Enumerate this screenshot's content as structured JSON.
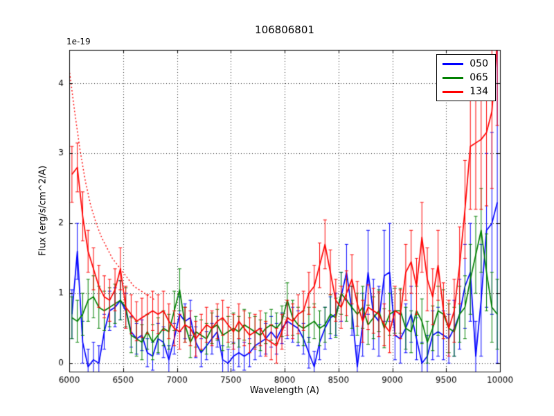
{
  "chart_data": {
    "type": "line",
    "title": "106806801",
    "xlabel": "Wavelength (A)",
    "ylabel": "Flux (erg/s/cm^2/A)",
    "y_offset_scale": "1e-19",
    "xlim": [
      6000,
      10000
    ],
    "ylim": [
      -0.12,
      4.48
    ],
    "x_ticks": [
      6000,
      6500,
      7000,
      7500,
      8000,
      8500,
      9000,
      9500,
      10000
    ],
    "y_ticks": [
      0,
      1,
      2,
      3,
      4
    ],
    "grid": true,
    "grid_style": "dotted",
    "legend_position": "upper right",
    "legend": {
      "entries": [
        {
          "label": "050",
          "color": "#0000ff"
        },
        {
          "label": "065",
          "color": "#008000"
        },
        {
          "label": "134",
          "color": "#ff0000"
        }
      ]
    },
    "x": {
      "start": 6025,
      "step": 50,
      "count": 80
    },
    "series": [
      {
        "name": "050",
        "color": "#0000ff",
        "style": "solid",
        "values": [
          0.7,
          1.6,
          0.3,
          -0.05,
          0.05,
          0.0,
          0.45,
          0.75,
          0.8,
          0.9,
          0.75,
          0.45,
          0.35,
          0.4,
          0.15,
          0.1,
          0.35,
          0.3,
          0.05,
          0.35,
          0.7,
          0.6,
          0.65,
          0.3,
          0.15,
          0.25,
          0.35,
          0.45,
          0.05,
          0.0,
          0.1,
          0.15,
          0.1,
          0.15,
          0.25,
          0.3,
          0.35,
          0.45,
          0.35,
          0.5,
          0.6,
          0.55,
          0.5,
          0.35,
          0.15,
          -0.05,
          0.3,
          0.5,
          0.65,
          0.7,
          0.95,
          1.3,
          0.75,
          -0.05,
          0.55,
          1.3,
          0.7,
          0.6,
          1.25,
          1.3,
          0.4,
          0.35,
          0.5,
          0.7,
          0.35,
          0.0,
          0.1,
          0.4,
          0.45,
          0.4,
          0.35,
          0.5,
          0.7,
          1.1,
          1.3,
          0.1,
          0.9,
          1.9,
          2.0,
          2.3
        ],
        "err": [
          0.35,
          0.4,
          0.3,
          0.25,
          0.25,
          0.25,
          0.25,
          0.28,
          0.28,
          0.28,
          0.25,
          0.22,
          0.22,
          0.22,
          0.2,
          0.2,
          0.22,
          0.22,
          0.2,
          0.22,
          0.25,
          0.25,
          0.25,
          0.22,
          0.2,
          0.2,
          0.22,
          0.22,
          0.2,
          0.2,
          0.2,
          0.2,
          0.2,
          0.2,
          0.2,
          0.2,
          0.22,
          0.22,
          0.22,
          0.22,
          0.25,
          0.25,
          0.25,
          0.22,
          0.22,
          0.22,
          0.25,
          0.3,
          0.3,
          0.3,
          0.35,
          0.4,
          0.35,
          0.3,
          0.45,
          0.6,
          0.5,
          0.5,
          0.65,
          0.7,
          0.35,
          0.35,
          0.35,
          0.4,
          0.3,
          0.3,
          0.3,
          0.35,
          0.35,
          0.35,
          0.35,
          0.4,
          0.5,
          0.6,
          0.7,
          0.5,
          0.8,
          1.1,
          1.3,
          2.3
        ]
      },
      {
        "name": "065",
        "color": "#008000",
        "style": "solid",
        "values": [
          0.65,
          0.6,
          0.7,
          0.9,
          0.95,
          0.8,
          0.75,
          0.8,
          0.85,
          0.9,
          0.8,
          0.4,
          0.35,
          0.3,
          0.45,
          0.3,
          0.4,
          0.5,
          0.45,
          0.75,
          1.05,
          0.55,
          0.3,
          0.45,
          0.4,
          0.35,
          0.5,
          0.55,
          0.4,
          0.45,
          0.5,
          0.45,
          0.55,
          0.5,
          0.45,
          0.4,
          0.5,
          0.55,
          0.5,
          0.6,
          0.9,
          0.65,
          0.55,
          0.5,
          0.55,
          0.6,
          0.5,
          0.55,
          0.7,
          0.65,
          1.0,
          0.9,
          0.8,
          0.7,
          0.8,
          0.55,
          0.65,
          0.75,
          0.5,
          0.7,
          0.75,
          0.75,
          0.5,
          0.45,
          0.75,
          0.6,
          0.3,
          0.5,
          0.75,
          0.7,
          0.5,
          0.45,
          0.7,
          0.8,
          1.2,
          1.55,
          1.9,
          1.3,
          0.8,
          0.7
        ],
        "err": [
          0.3,
          0.3,
          0.3,
          0.3,
          0.3,
          0.3,
          0.28,
          0.28,
          0.28,
          0.28,
          0.28,
          0.25,
          0.25,
          0.25,
          0.25,
          0.25,
          0.25,
          0.25,
          0.25,
          0.28,
          0.3,
          0.25,
          0.22,
          0.22,
          0.22,
          0.22,
          0.22,
          0.22,
          0.22,
          0.22,
          0.22,
          0.22,
          0.22,
          0.22,
          0.22,
          0.22,
          0.22,
          0.22,
          0.22,
          0.22,
          0.25,
          0.25,
          0.25,
          0.25,
          0.25,
          0.25,
          0.25,
          0.25,
          0.28,
          0.28,
          0.3,
          0.3,
          0.3,
          0.3,
          0.3,
          0.28,
          0.3,
          0.3,
          0.28,
          0.3,
          0.32,
          0.32,
          0.3,
          0.3,
          0.35,
          0.32,
          0.3,
          0.32,
          0.35,
          0.35,
          0.35,
          0.35,
          0.4,
          0.45,
          0.5,
          0.55,
          0.6,
          0.55,
          0.5,
          0.5
        ]
      },
      {
        "name": "134",
        "color": "#ff0000",
        "style": "solid",
        "values": [
          2.7,
          2.8,
          2.1,
          1.6,
          1.35,
          1.1,
          0.95,
          0.9,
          1.05,
          1.35,
          0.8,
          0.7,
          0.6,
          0.65,
          0.7,
          0.75,
          0.7,
          0.75,
          0.6,
          0.5,
          0.45,
          0.55,
          0.5,
          0.35,
          0.45,
          0.55,
          0.5,
          0.6,
          0.65,
          0.55,
          0.45,
          0.6,
          0.5,
          0.4,
          0.45,
          0.5,
          0.35,
          0.3,
          0.25,
          0.45,
          0.65,
          0.6,
          0.7,
          0.75,
          1.0,
          1.1,
          1.4,
          1.7,
          1.3,
          0.9,
          0.8,
          1.0,
          1.2,
          0.85,
          0.6,
          0.8,
          0.75,
          0.7,
          0.55,
          0.45,
          0.75,
          0.7,
          1.3,
          1.45,
          1.1,
          1.8,
          1.2,
          0.95,
          1.4,
          0.75,
          0.5,
          0.75,
          1.4,
          2.2,
          3.1,
          3.15,
          3.2,
          3.3,
          3.6,
          4.6
        ],
        "err": [
          0.4,
          0.35,
          0.35,
          0.3,
          0.3,
          0.3,
          0.3,
          0.3,
          0.3,
          0.3,
          0.3,
          0.28,
          0.28,
          0.28,
          0.28,
          0.28,
          0.28,
          0.28,
          0.25,
          0.25,
          0.25,
          0.25,
          0.25,
          0.25,
          0.25,
          0.25,
          0.25,
          0.25,
          0.25,
          0.25,
          0.25,
          0.25,
          0.25,
          0.25,
          0.25,
          0.25,
          0.25,
          0.25,
          0.25,
          0.25,
          0.25,
          0.25,
          0.28,
          0.28,
          0.3,
          0.3,
          0.32,
          0.35,
          0.32,
          0.3,
          0.3,
          0.32,
          0.35,
          0.32,
          0.3,
          0.32,
          0.32,
          0.32,
          0.3,
          0.3,
          0.35,
          0.35,
          0.4,
          0.45,
          0.4,
          0.5,
          0.45,
          0.4,
          0.5,
          0.4,
          0.4,
          0.45,
          0.55,
          0.7,
          0.9,
          0.95,
          1.0,
          1.05,
          1.1,
          1.2
        ]
      },
      {
        "name": "134-dotted",
        "color": "#ff0000",
        "style": "dotted",
        "in_legend": false,
        "x_values": [
          6000,
          6050,
          6100,
          6150,
          6200,
          6250,
          6300,
          6350,
          6400,
          6450,
          6500,
          6550,
          6600,
          6650,
          6700,
          6750,
          6800
        ],
        "values": [
          4.2,
          3.6,
          3.05,
          2.6,
          2.25,
          2.0,
          1.8,
          1.65,
          1.5,
          1.4,
          1.3,
          1.2,
          1.1,
          1.05,
          1.0,
          0.95,
          0.9
        ]
      }
    ]
  }
}
